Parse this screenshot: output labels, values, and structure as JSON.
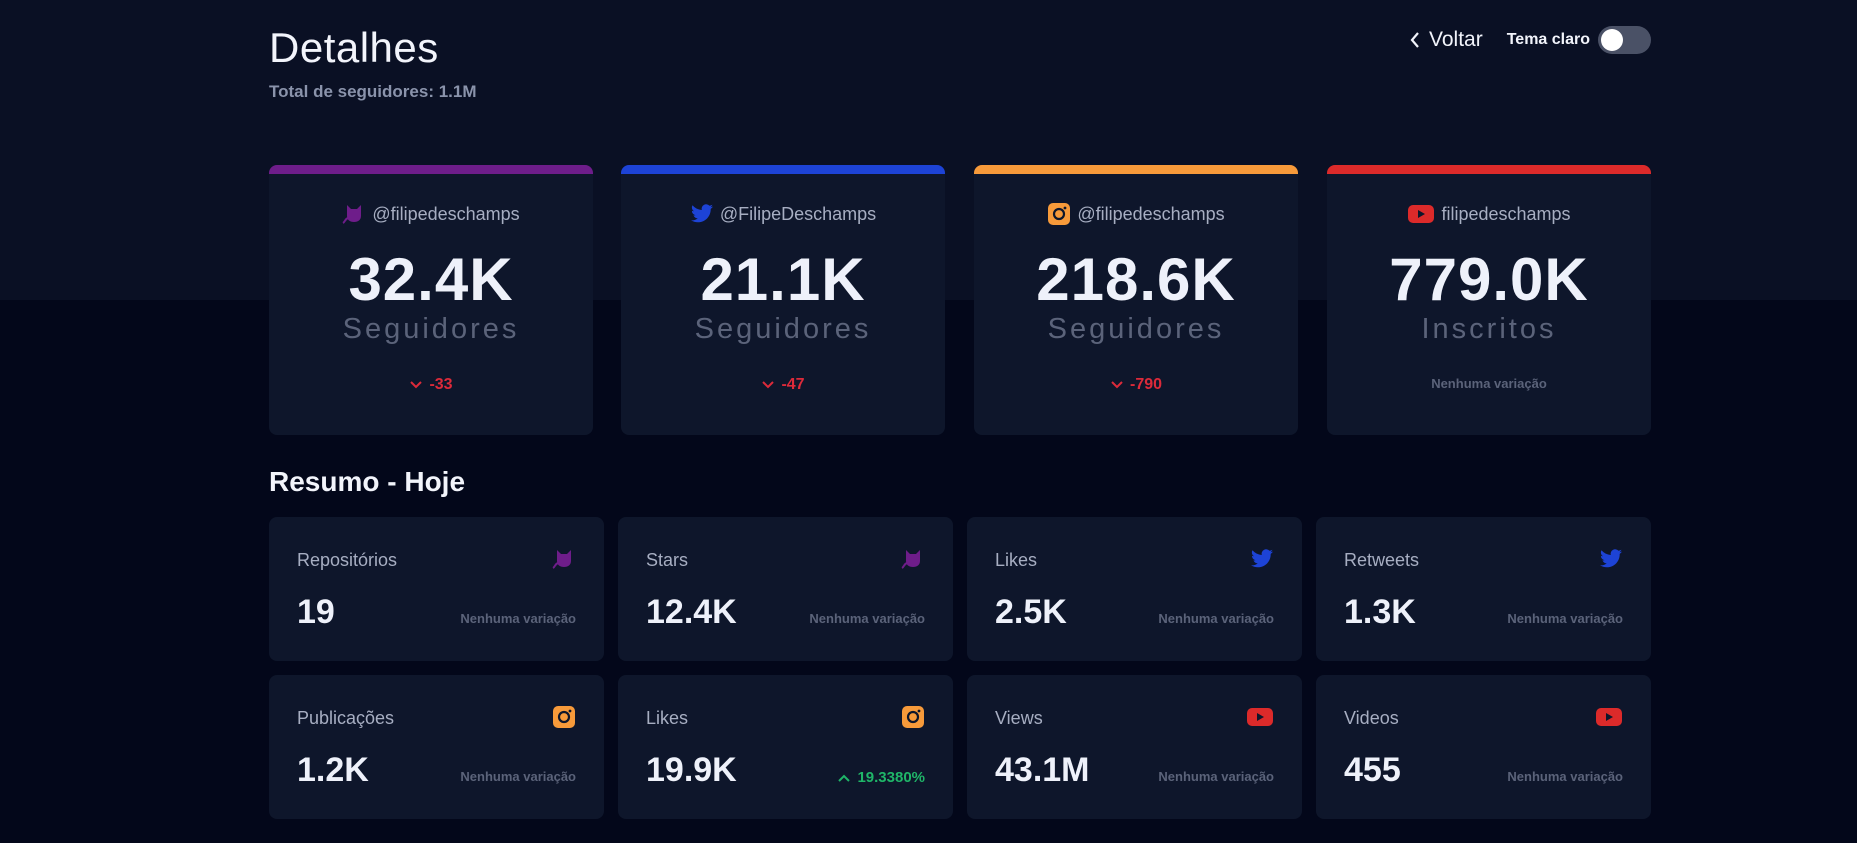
{
  "header": {
    "title": "Detalhes",
    "subtitle": "Total de seguidores: 1.1M",
    "back_label": "Voltar",
    "theme_label": "Tema claro",
    "theme_toggle_on": false
  },
  "colors": {
    "github": "#6e1d8a",
    "twitter": "#1d43d6",
    "instagram": "#f79a3a",
    "youtube": "#dc2a2a",
    "down": "#dc2a3a",
    "up": "#1fb568"
  },
  "cards": [
    {
      "network": "github",
      "icon": "github-octocat-icon",
      "handle": "@filipedeschamps",
      "count": "32.4K",
      "label": "Seguidores",
      "change": "-33",
      "direction": "down"
    },
    {
      "network": "twitter",
      "icon": "twitter-bird-icon",
      "handle": "@FilipeDeschamps",
      "count": "21.1K",
      "label": "Seguidores",
      "change": "-47",
      "direction": "down"
    },
    {
      "network": "instagram",
      "icon": "instagram-icon",
      "handle": "@filipedeschamps",
      "count": "218.6K",
      "label": "Seguidores",
      "change": "-790",
      "direction": "down"
    },
    {
      "network": "youtube",
      "icon": "youtube-icon",
      "handle": "filipedeschamps",
      "count": "779.0K",
      "label": "Inscritos",
      "change": "Nenhuma variação",
      "direction": "none"
    }
  ],
  "summary": {
    "title": "Resumo - Hoje",
    "items": [
      {
        "label": "Repositórios",
        "icon": "github-octocat-icon",
        "value": "19",
        "change": "Nenhuma variação",
        "direction": "none"
      },
      {
        "label": "Stars",
        "icon": "github-octocat-icon",
        "value": "12.4K",
        "change": "Nenhuma variação",
        "direction": "none"
      },
      {
        "label": "Likes",
        "icon": "twitter-bird-icon",
        "value": "2.5K",
        "change": "Nenhuma variação",
        "direction": "none"
      },
      {
        "label": "Retweets",
        "icon": "twitter-bird-icon",
        "value": "1.3K",
        "change": "Nenhuma variação",
        "direction": "none"
      },
      {
        "label": "Publicações",
        "icon": "instagram-icon",
        "value": "1.2K",
        "change": "Nenhuma variação",
        "direction": "none"
      },
      {
        "label": "Likes",
        "icon": "instagram-icon",
        "value": "19.9K",
        "change": "19.3380%",
        "direction": "up"
      },
      {
        "label": "Views",
        "icon": "youtube-icon",
        "value": "43.1M",
        "change": "Nenhuma variação",
        "direction": "none"
      },
      {
        "label": "Videos",
        "icon": "youtube-icon",
        "value": "455",
        "change": "Nenhuma variação",
        "direction": "none"
      }
    ]
  }
}
